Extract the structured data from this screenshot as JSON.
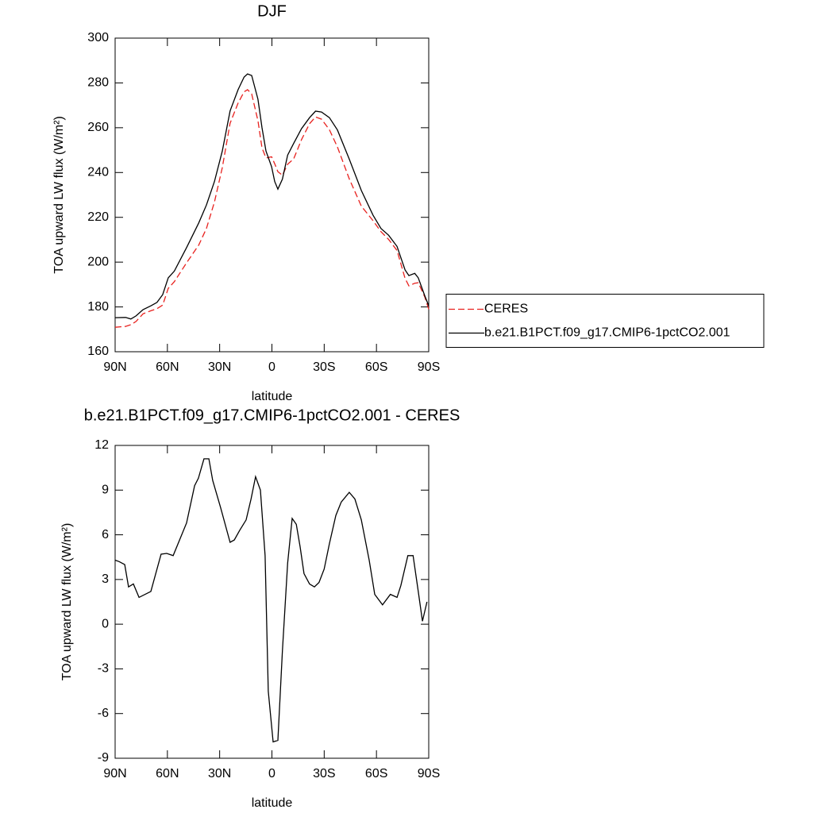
{
  "chart_data": [
    {
      "type": "line",
      "title": "DJF",
      "xlabel": "latitude",
      "ylabel": "TOA upward LW flux (W/m²)",
      "xlim": [
        90,
        -90
      ],
      "ylim": [
        160,
        300
      ],
      "xticks": [
        {
          "value": 90,
          "label": "90N"
        },
        {
          "value": 60,
          "label": "60N"
        },
        {
          "value": 30,
          "label": "30N"
        },
        0,
        {
          "value": -30,
          "label": "30S"
        },
        {
          "value": -60,
          "label": "60S"
        },
        {
          "value": -90,
          "label": "90S"
        }
      ],
      "yticks": [
        160,
        180,
        200,
        220,
        240,
        260,
        280,
        300
      ],
      "legend": "right",
      "x": [
        90,
        84,
        81,
        78,
        74,
        69.5,
        66,
        62.7,
        59.5,
        56,
        49,
        42,
        37.6,
        33,
        28.5,
        24,
        19.4,
        16,
        14,
        11.6,
        8,
        5.7,
        3.4,
        0.2,
        -1.6,
        -3.4,
        -6,
        -9,
        -12.5,
        -17,
        -21.6,
        -25,
        -28.5,
        -33,
        -37.6,
        -44.4,
        -51.3,
        -58,
        -62.6,
        -67,
        -71.8,
        -76.4,
        -78.6,
        -82,
        -84,
        -87.7,
        -90
      ],
      "series": [
        {
          "name": "CERES",
          "color": "#e8211e",
          "linestyle": "dashed",
          "values": [
            170.9,
            171.3,
            172.1,
            173.5,
            176.9,
            178.3,
            179.2,
            180.8,
            188.3,
            191.3,
            199.7,
            207.6,
            215,
            226.8,
            242.2,
            262,
            271,
            276,
            277,
            275.1,
            263.1,
            251,
            246.5,
            247,
            243.9,
            240.4,
            238.8,
            243.7,
            246.1,
            254.7,
            261.8,
            264.8,
            263.8,
            259.1,
            251.4,
            237.2,
            225,
            218.5,
            213.6,
            210.1,
            205.2,
            192.7,
            189.4,
            190.6,
            190.8,
            184.5,
            179
          ]
        },
        {
          "name": "b.e21.B1PCT.f09_g17.CMIP6-1pctCO2.001",
          "color": "#000000",
          "linestyle": "solid",
          "values": [
            175.2,
            175.3,
            174.6,
            176,
            178.8,
            180.5,
            182,
            185.5,
            193,
            196,
            206.5,
            217.5,
            225.5,
            236,
            249.6,
            267.5,
            277,
            282.6,
            284,
            283.3,
            272.7,
            260,
            249.6,
            242.6,
            236,
            232.6,
            237,
            247.8,
            253,
            259.6,
            264.5,
            267.4,
            267,
            264.5,
            259,
            246,
            232,
            221,
            215,
            212,
            207,
            196.5,
            194,
            195,
            193,
            185,
            180.5
          ]
        }
      ]
    },
    {
      "type": "line",
      "title": "b.e21.B1PCT.f09_g17.CMIP6-1pctCO2.001 - CERES",
      "xlabel": "latitude",
      "ylabel": "TOA upward LW flux (W/m²)",
      "xlim": [
        90,
        -90
      ],
      "ylim": [
        -9,
        12
      ],
      "xticks": [
        {
          "value": 90,
          "label": "90N"
        },
        {
          "value": 60,
          "label": "60N"
        },
        {
          "value": 30,
          "label": "30N"
        },
        0,
        {
          "value": -30,
          "label": "30S"
        },
        {
          "value": -60,
          "label": "60S"
        },
        {
          "value": -90,
          "label": "90S"
        }
      ],
      "yticks": [
        -9,
        -6,
        -3,
        0,
        3,
        6,
        9,
        12
      ],
      "x": [
        90,
        87.7,
        84.5,
        82.3,
        79.5,
        76.3,
        69.5,
        63.6,
        60.4,
        56.7,
        49,
        44.4,
        42.2,
        39,
        36.2,
        34,
        29.4,
        24,
        21.6,
        18.5,
        14.8,
        12,
        9.4,
        6.6,
        3.9,
        2.1,
        -0.7,
        -3.4,
        -6,
        -9,
        -11.6,
        -14,
        -16.2,
        -18.4,
        -21.6,
        -24.4,
        -27,
        -30,
        -33,
        -36.7,
        -39.8,
        -44.4,
        -47.6,
        -51.3,
        -55.8,
        -59,
        -63.5,
        -68,
        -71.8,
        -74,
        -78,
        -81,
        -84,
        -86.4,
        -89
      ],
      "series": [
        {
          "color": "#000000",
          "linestyle": "solid",
          "values": [
            4.3,
            4.2,
            4.0,
            2.5,
            2.7,
            1.8,
            2.2,
            4.7,
            4.75,
            4.6,
            6.8,
            9.3,
            9.8,
            11.1,
            11.1,
            9.65,
            7.8,
            5.5,
            5.65,
            6.3,
            7.0,
            8.4,
            9.9,
            9.0,
            4.6,
            -4.5,
            -7.9,
            -7.8,
            -1.8,
            4.1,
            7.1,
            6.7,
            5.2,
            3.4,
            2.7,
            2.5,
            2.8,
            3.7,
            5.4,
            7.3,
            8.2,
            8.85,
            8.4,
            7.0,
            4.3,
            2.0,
            1.3,
            2.0,
            1.8,
            2.6,
            4.6,
            4.6,
            2.2,
            0.2,
            1.5
          ]
        }
      ]
    }
  ]
}
